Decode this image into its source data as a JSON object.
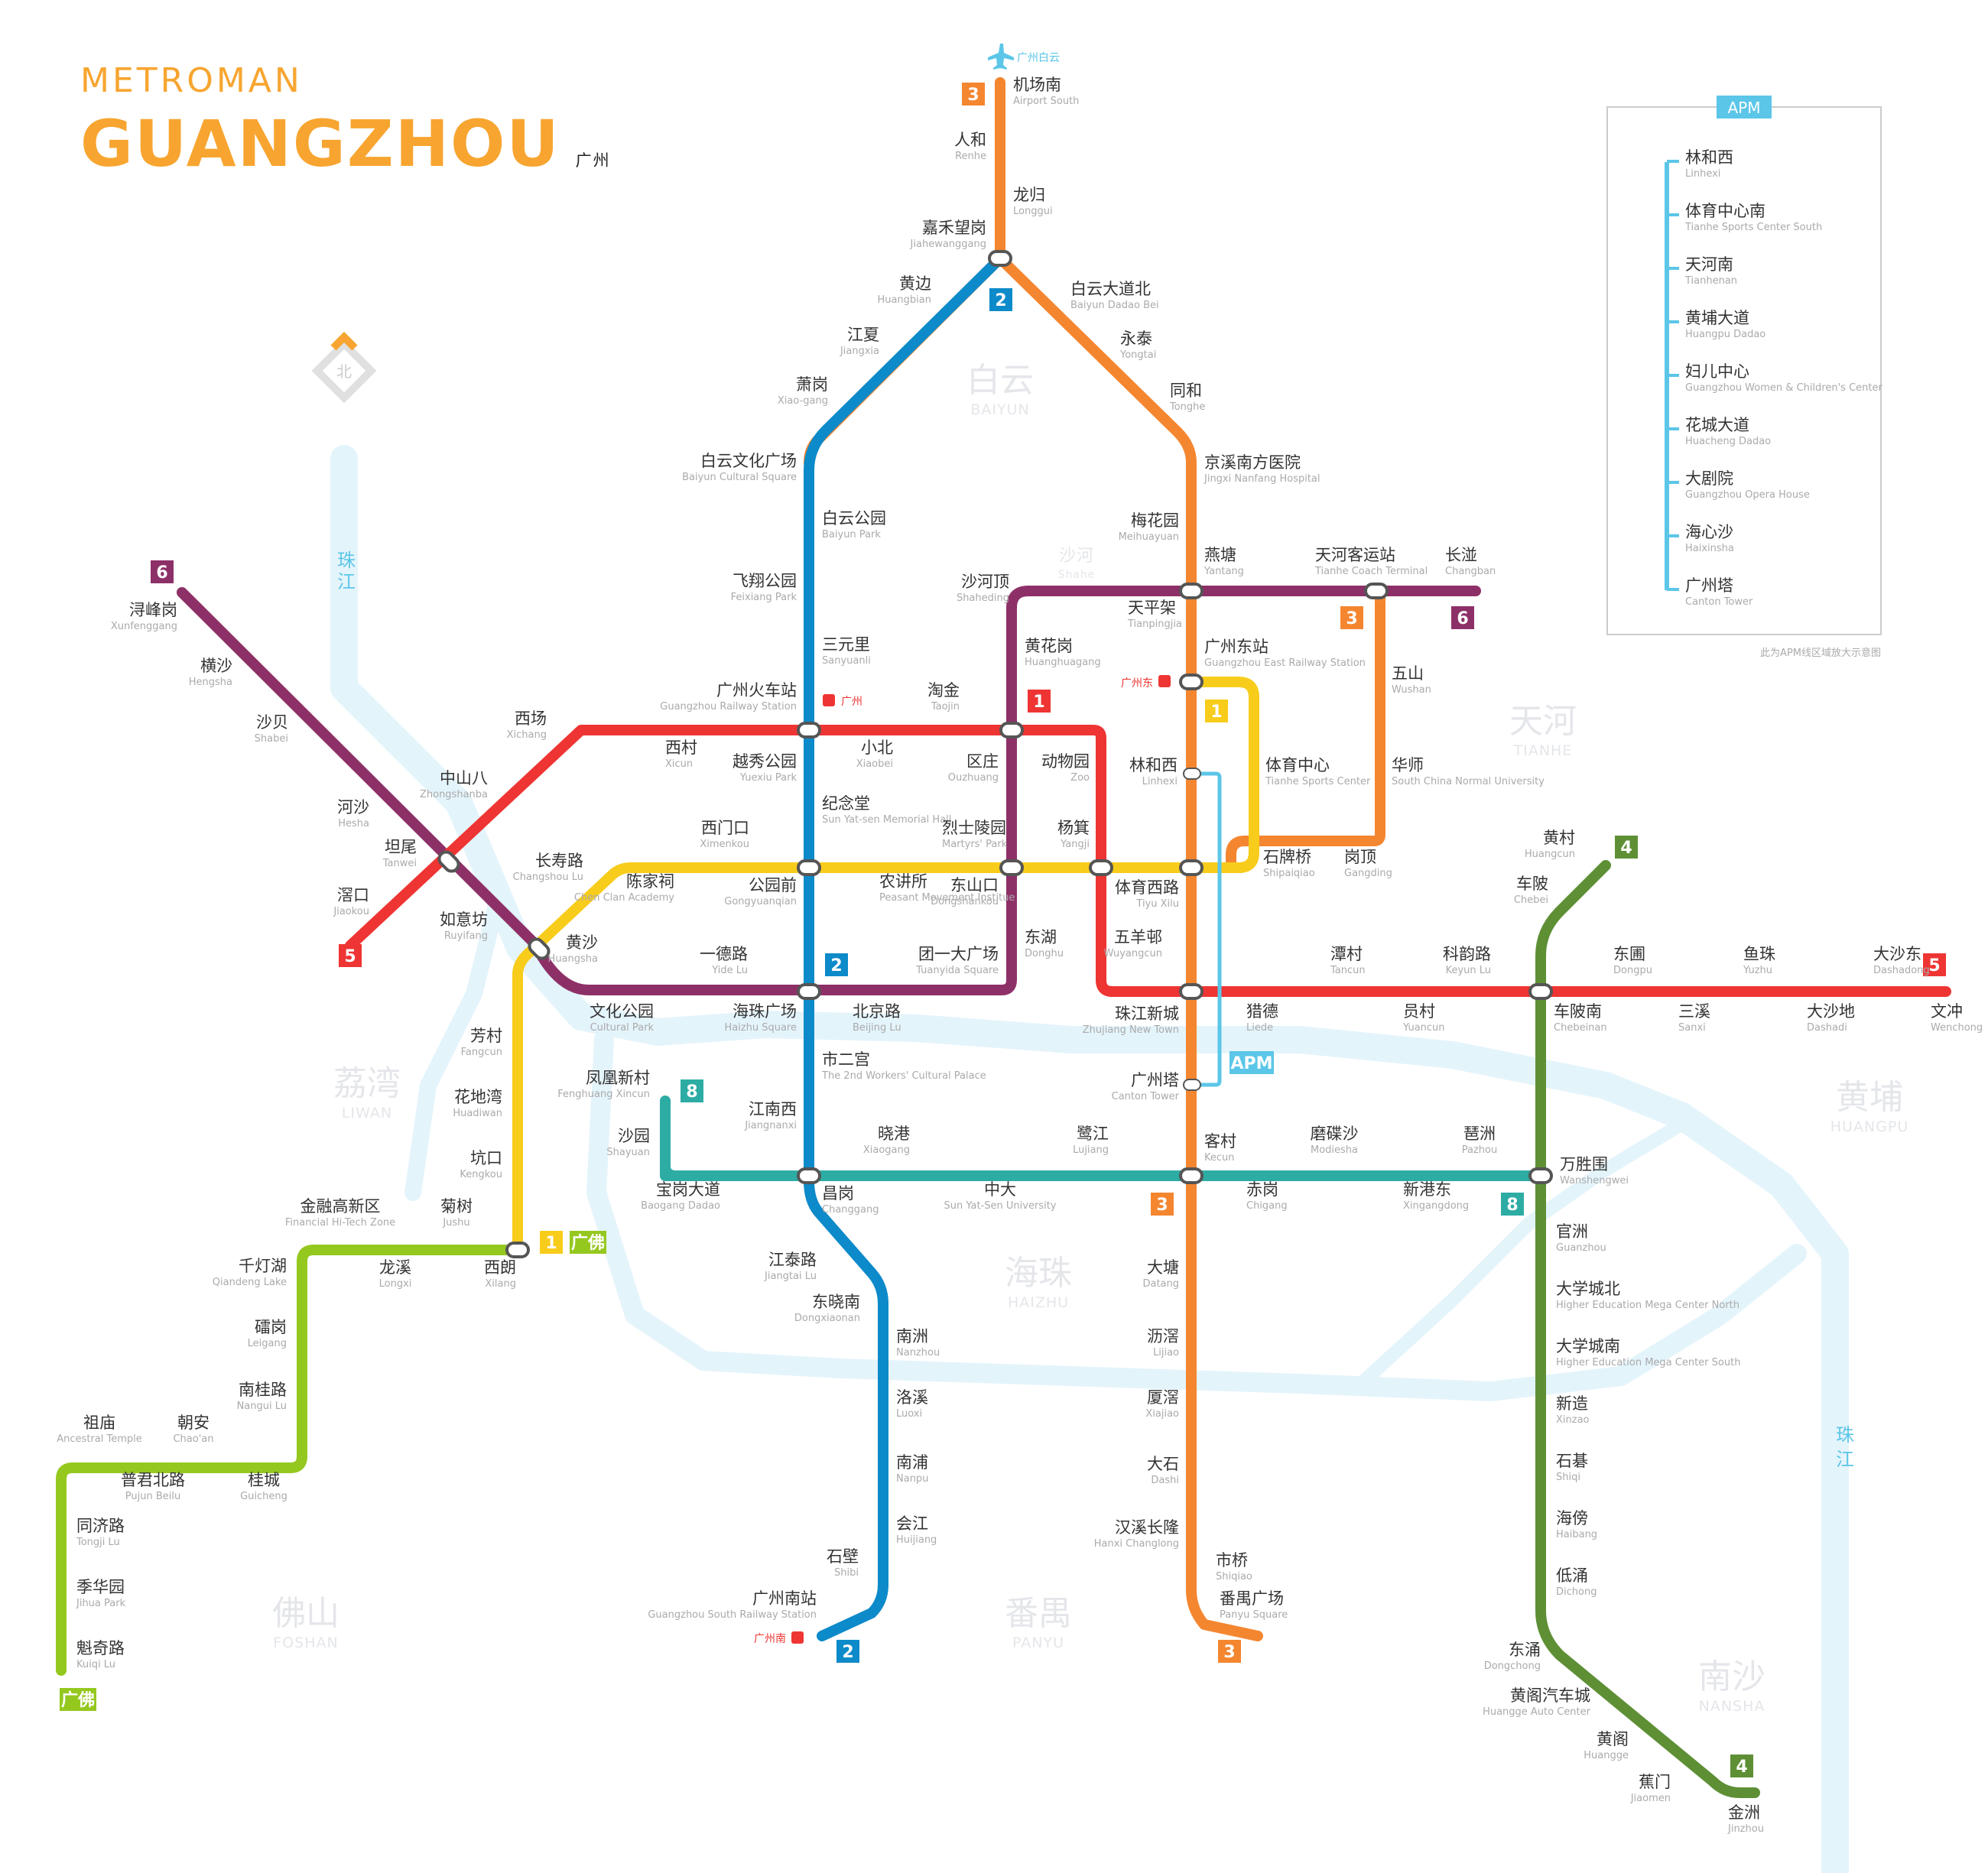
{
  "header": {
    "brand": "METROMAN",
    "city_en": "GUANGZHOU",
    "city_cn": "广州"
  },
  "compass": {
    "label": "北"
  },
  "colors": {
    "1": "#f8cc1b",
    "2": "#0d8ac9",
    "3": "#f48630",
    "4": "#5e8f35",
    "5": "#ee3533",
    "6": "#8e3068",
    "8": "#2daca4",
    "gf": "#95c81f",
    "apm": "#5bc6e8",
    "river": "#e4f4fb",
    "brand": "#f7a530"
  },
  "districts": [
    {
      "cn": "白云",
      "en": "BAIYUN"
    },
    {
      "cn": "天河",
      "en": "TIANHE"
    },
    {
      "cn": "荔湾",
      "en": "LIWAN"
    },
    {
      "cn": "黄埔",
      "en": "HUANGPU"
    },
    {
      "cn": "海珠",
      "en": "HAIZHU"
    },
    {
      "cn": "佛山",
      "en": "FOSHAN"
    },
    {
      "cn": "番禺",
      "en": "PANYU"
    },
    {
      "cn": "南沙",
      "en": "NANSHA"
    },
    {
      "cn": "沙河",
      "en": "Shahe"
    }
  ],
  "river": [
    {
      "label": "珠江"
    },
    {
      "label": "珠江"
    }
  ],
  "airport_label": "广州白云",
  "railway_labels": [
    "广州",
    "广州东",
    "广州南"
  ],
  "apm": {
    "badge": "APM",
    "stations": [
      {
        "cn": "林和西",
        "en": "Linhexi"
      },
      {
        "cn": "体育中心南",
        "en": "Tianhe Sports Center South"
      },
      {
        "cn": "天河南",
        "en": "Tianhenan"
      },
      {
        "cn": "黄埔大道",
        "en": "Huangpu Dadao"
      },
      {
        "cn": "妇儿中心",
        "en": "Guangzhou Women & Children's Center"
      },
      {
        "cn": "花城大道",
        "en": "Huacheng Dadao"
      },
      {
        "cn": "大剧院",
        "en": "Guangzhou Opera House"
      },
      {
        "cn": "海心沙",
        "en": "Haixinsha"
      },
      {
        "cn": "广州塔",
        "en": "Canton Tower"
      }
    ],
    "note": "此为APM线区域放大示意图",
    "map_badge": "APM"
  },
  "badges": [
    "1",
    "2",
    "3",
    "4",
    "5",
    "6",
    "8",
    "广佛"
  ],
  "stations": [
    {
      "cn": "机场南",
      "en": "Airport South"
    },
    {
      "cn": "人和",
      "en": "Renhe"
    },
    {
      "cn": "龙归",
      "en": "Longgui"
    },
    {
      "cn": "嘉禾望岗",
      "en": "Jiahewanggang"
    },
    {
      "cn": "白云大道北",
      "en": "Baiyun Dadao Bei"
    },
    {
      "cn": "永泰",
      "en": "Yongtai"
    },
    {
      "cn": "同和",
      "en": "Tonghe"
    },
    {
      "cn": "京溪南方医院",
      "en": "Jingxi Nanfang Hospital"
    },
    {
      "cn": "梅花园",
      "en": "Meihuayuan"
    },
    {
      "cn": "燕塘",
      "en": "Yantang"
    },
    {
      "cn": "天河客运站",
      "en": "Tianhe Coach Terminal"
    },
    {
      "cn": "长湴",
      "en": "Changban"
    },
    {
      "cn": "广州东站",
      "en": "Guangzhou East Railway Station"
    },
    {
      "cn": "五山",
      "en": "Wushan"
    },
    {
      "cn": "华师",
      "en": "South China Normal University"
    },
    {
      "cn": "体育中心",
      "en": "Tianhe Sports Center"
    },
    {
      "cn": "林和西",
      "en": "Linhexi"
    },
    {
      "cn": "石牌桥",
      "en": "Shipaiqiao"
    },
    {
      "cn": "岗顶",
      "en": "Gangding"
    },
    {
      "cn": "体育西路",
      "en": "Tiyu Xilu"
    },
    {
      "cn": "五羊邨",
      "en": "Wuyangcun"
    },
    {
      "cn": "珠江新城",
      "en": "Zhujiang New Town"
    },
    {
      "cn": "广州塔",
      "en": "Canton Tower"
    },
    {
      "cn": "客村",
      "en": "Kecun"
    },
    {
      "cn": "大塘",
      "en": "Datang"
    },
    {
      "cn": "沥滘",
      "en": "Lijiao"
    },
    {
      "cn": "厦滘",
      "en": "Xiajiao"
    },
    {
      "cn": "大石",
      "en": "Dashi"
    },
    {
      "cn": "汉溪长隆",
      "en": "Hanxi Changlong"
    },
    {
      "cn": "市桥",
      "en": "Shiqiao"
    },
    {
      "cn": "番禺广场",
      "en": "Panyu Square"
    },
    {
      "cn": "黄边",
      "en": "Huangbian"
    },
    {
      "cn": "江夏",
      "en": "Jiangxia"
    },
    {
      "cn": "萧岗",
      "en": "Xiao-gang"
    },
    {
      "cn": "白云文化广场",
      "en": "Baiyun Cultural Square"
    },
    {
      "cn": "白云公园",
      "en": "Baiyun Park"
    },
    {
      "cn": "飞翔公园",
      "en": "Feixiang Park"
    },
    {
      "cn": "三元里",
      "en": "Sanyuanli"
    },
    {
      "cn": "广州火车站",
      "en": "Guangzhou Railway Station"
    },
    {
      "cn": "越秀公园",
      "en": "Yuexiu Park"
    },
    {
      "cn": "纪念堂",
      "en": "Sun Yat-sen Memorial Hall"
    },
    {
      "cn": "公园前",
      "en": "Gongyuanqian"
    },
    {
      "cn": "海珠广场",
      "en": "Haizhu Square"
    },
    {
      "cn": "市二宫",
      "en": "The 2nd Workers' Cultural Palace"
    },
    {
      "cn": "江南西",
      "en": "Jiangnanxi"
    },
    {
      "cn": "昌岗",
      "en": "Changgang"
    },
    {
      "cn": "江泰路",
      "en": "Jiangtai Lu"
    },
    {
      "cn": "东晓南",
      "en": "Dongxiaonan"
    },
    {
      "cn": "南洲",
      "en": "Nanzhou"
    },
    {
      "cn": "洛溪",
      "en": "Luoxi"
    },
    {
      "cn": "南浦",
      "en": "Nanpu"
    },
    {
      "cn": "会江",
      "en": "Huijiang"
    },
    {
      "cn": "石壁",
      "en": "Shibi"
    },
    {
      "cn": "广州南站",
      "en": "Guangzhou South Railway Station"
    },
    {
      "cn": "浔峰岗",
      "en": "Xunfenggang"
    },
    {
      "cn": "横沙",
      "en": "Hengsha"
    },
    {
      "cn": "沙贝",
      "en": "Shabei"
    },
    {
      "cn": "河沙",
      "en": "Hesha"
    },
    {
      "cn": "坦尾",
      "en": "Tanwei"
    },
    {
      "cn": "如意坊",
      "en": "Ruyifang"
    },
    {
      "cn": "黄沙",
      "en": "Huangsha"
    },
    {
      "cn": "文化公园",
      "en": "Cultural Park"
    },
    {
      "cn": "一德路",
      "en": "Yide Lu"
    },
    {
      "cn": "北京路",
      "en": "Beijing Lu"
    },
    {
      "cn": "团一大广场",
      "en": "Tuanyida Square"
    },
    {
      "cn": "东湖",
      "en": "Donghu"
    },
    {
      "cn": "东山口",
      "en": "Dongshankou"
    },
    {
      "cn": "区庄",
      "en": "Ouzhuang"
    },
    {
      "cn": "黄花岗",
      "en": "Huanghuagang"
    },
    {
      "cn": "沙河顶",
      "en": "Shaheding"
    },
    {
      "cn": "天平架",
      "en": "Tianpingjia"
    },
    {
      "cn": "滘口",
      "en": "Jiaokou"
    },
    {
      "cn": "中山八",
      "en": "Zhongshanba"
    },
    {
      "cn": "西场",
      "en": "Xichang"
    },
    {
      "cn": "西村",
      "en": "Xicun"
    },
    {
      "cn": "小北",
      "en": "Xiaobei"
    },
    {
      "cn": "淘金",
      "en": "Taojin"
    },
    {
      "cn": "动物园",
      "en": "Zoo"
    },
    {
      "cn": "杨箕",
      "en": "Yangji"
    },
    {
      "cn": "猎德",
      "en": "Liede"
    },
    {
      "cn": "潭村",
      "en": "Tancun"
    },
    {
      "cn": "员村",
      "en": "Yuancun"
    },
    {
      "cn": "科韵路",
      "en": "Keyun Lu"
    },
    {
      "cn": "车陂南",
      "en": "Chebeinan"
    },
    {
      "cn": "东圃",
      "en": "Dongpu"
    },
    {
      "cn": "三溪",
      "en": "Sanxi"
    },
    {
      "cn": "鱼珠",
      "en": "Yuzhu"
    },
    {
      "cn": "大沙地",
      "en": "Dashadi"
    },
    {
      "cn": "大沙东",
      "en": "Dashadong"
    },
    {
      "cn": "文冲",
      "en": "Wenchong"
    },
    {
      "cn": "西朗",
      "en": "Xilang"
    },
    {
      "cn": "坑口",
      "en": "Kengkou"
    },
    {
      "cn": "花地湾",
      "en": "Huadiwan"
    },
    {
      "cn": "芳村",
      "en": "Fangcun"
    },
    {
      "cn": "长寿路",
      "en": "Changshou Lu"
    },
    {
      "cn": "陈家祠",
      "en": "Chen Clan Academy"
    },
    {
      "cn": "西门口",
      "en": "Ximenkou"
    },
    {
      "cn": "农讲所",
      "en": "Peasant Movement Institue"
    },
    {
      "cn": "烈士陵园",
      "en": "Martyrs' Park"
    },
    {
      "cn": "凤凰新村",
      "en": "Fenghuang Xincun"
    },
    {
      "cn": "沙园",
      "en": "Shayuan"
    },
    {
      "cn": "宝岗大道",
      "en": "Baogang Dadao"
    },
    {
      "cn": "晓港",
      "en": "Xiaogang"
    },
    {
      "cn": "中大",
      "en": "Sun Yat-Sen University"
    },
    {
      "cn": "鹭江",
      "en": "Lujiang"
    },
    {
      "cn": "赤岗",
      "en": "Chigang"
    },
    {
      "cn": "磨碟沙",
      "en": "Modiesha"
    },
    {
      "cn": "新港东",
      "en": "Xingangdong"
    },
    {
      "cn": "琶洲",
      "en": "Pazhou"
    },
    {
      "cn": "万胜围",
      "en": "Wanshengwei"
    },
    {
      "cn": "黄村",
      "en": "Huangcun"
    },
    {
      "cn": "车陂",
      "en": "Chebei"
    },
    {
      "cn": "官洲",
      "en": "Guanzhou"
    },
    {
      "cn": "大学城北",
      "en": "Higher Education Mega Center North"
    },
    {
      "cn": "大学城南",
      "en": "Higher Education Mega Center South"
    },
    {
      "cn": "新造",
      "en": "Xinzao"
    },
    {
      "cn": "石碁",
      "en": "Shiqi"
    },
    {
      "cn": "海傍",
      "en": "Haibang"
    },
    {
      "cn": "低涌",
      "en": "Dichong"
    },
    {
      "cn": "东涌",
      "en": "Dongchong"
    },
    {
      "cn": "黄阁汽车城",
      "en": "Huangge Auto Center"
    },
    {
      "cn": "黄阁",
      "en": "Huangge"
    },
    {
      "cn": "蕉门",
      "en": "Jiaomen"
    },
    {
      "cn": "金洲",
      "en": "Jinzhou"
    },
    {
      "cn": "菊树",
      "en": "Jushu"
    },
    {
      "cn": "金融高新区",
      "en": "Financial Hi-Tech Zone"
    },
    {
      "cn": "龙溪",
      "en": "Longxi"
    },
    {
      "cn": "千灯湖",
      "en": "Qiandeng Lake"
    },
    {
      "cn": "礌岗",
      "en": "Leigang"
    },
    {
      "cn": "南桂路",
      "en": "Nangui Lu"
    },
    {
      "cn": "桂城",
      "en": "Guicheng"
    },
    {
      "cn": "朝安",
      "en": "Chao'an"
    },
    {
      "cn": "普君北路",
      "en": "Pujun Beilu"
    },
    {
      "cn": "祖庙",
      "en": "Ancestral Temple"
    },
    {
      "cn": "同济路",
      "en": "Tongji Lu"
    },
    {
      "cn": "季华园",
      "en": "Jihua Park"
    },
    {
      "cn": "魁奇路",
      "en": "Kuiqi Lu"
    }
  ]
}
